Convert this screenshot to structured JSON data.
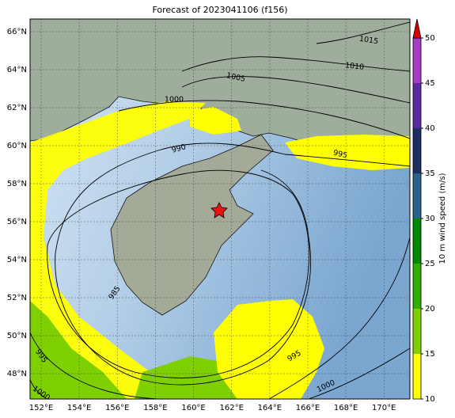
{
  "title": "Forecast of 2023041106 (f156)",
  "map": {
    "lon_ticks": [
      {
        "value": 152,
        "label": "152°E"
      },
      {
        "value": 154,
        "label": "154°E"
      },
      {
        "value": 156,
        "label": "156°E"
      },
      {
        "value": 158,
        "label": "158°E"
      },
      {
        "value": 160,
        "label": "160°E"
      },
      {
        "value": 162,
        "label": "162°E"
      },
      {
        "value": 164,
        "label": "164°E"
      },
      {
        "value": 166,
        "label": "166°E"
      },
      {
        "value": 168,
        "label": "168°E"
      },
      {
        "value": 170,
        "label": "170°E"
      }
    ],
    "lat_ticks": [
      {
        "value": 48,
        "label": "48°N"
      },
      {
        "value": 50,
        "label": "50°N"
      },
      {
        "value": 52,
        "label": "52°N"
      },
      {
        "value": 54,
        "label": "54°N"
      },
      {
        "value": 56,
        "label": "56°N"
      },
      {
        "value": 58,
        "label": "58°N"
      },
      {
        "value": 60,
        "label": "60°N"
      },
      {
        "value": 62,
        "label": "62°N"
      },
      {
        "value": 64,
        "label": "64°N"
      },
      {
        "value": 66,
        "label": "66°N"
      }
    ],
    "grid": true,
    "contour_labels": [
      1015,
      1010,
      1005,
      1000,
      990,
      995,
      985,
      995,
      995,
      1000,
      1000
    ]
  },
  "colorbar": {
    "label": "10 m wind speed (m/s)",
    "lim": [
      10,
      50
    ],
    "ticks": [
      10,
      15,
      20,
      25,
      30,
      35,
      40,
      45,
      50
    ],
    "colors": [
      "#ffff00",
      "#7ed000",
      "#2fae00",
      "#008a00",
      "#2a6290",
      "#1f2f60",
      "#5a2aa0",
      "#a63cc4"
    ],
    "extend_color": "#dd0000"
  }
}
